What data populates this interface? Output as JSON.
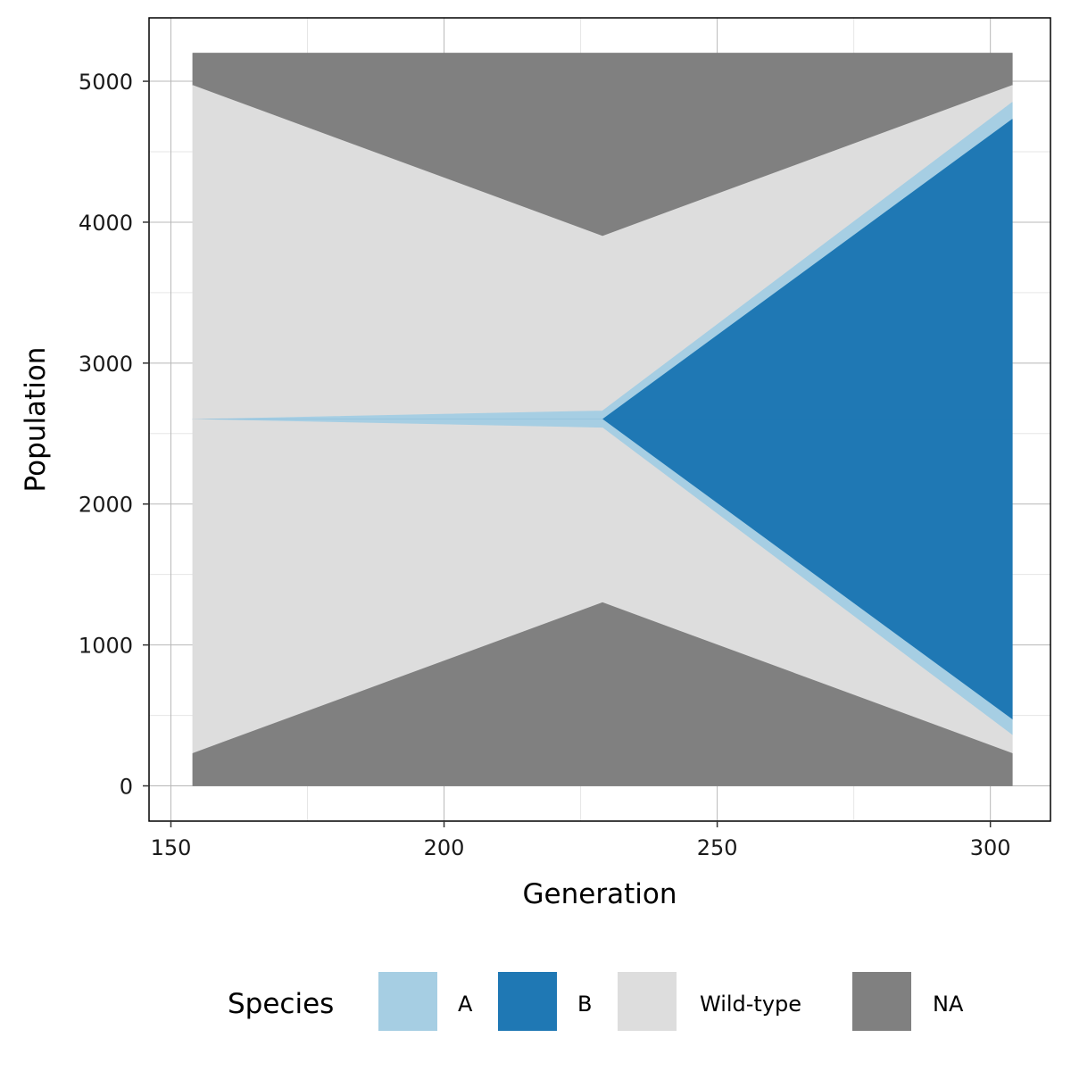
{
  "chart_data": {
    "type": "area",
    "xlabel": "Generation",
    "ylabel": "Population",
    "x_ticks": [
      150,
      200,
      250,
      300
    ],
    "y_ticks": [
      0,
      1000,
      2000,
      3000,
      4000,
      5000
    ],
    "xlim": [
      146,
      311
    ],
    "ylim": [
      -250,
      5450
    ],
    "grid": true,
    "legend": {
      "title": "Species",
      "position": "bottom",
      "entries": [
        {
          "label": "A",
          "color": "#A6CEE3"
        },
        {
          "label": "B",
          "color": "#1F78B4"
        },
        {
          "label": "Wild-type",
          "color": "#DDDDDD"
        },
        {
          "label": "NA",
          "color": "#808080"
        }
      ]
    },
    "x": [
      154,
      229,
      304
    ],
    "series": [
      {
        "name": "NA",
        "color": "#808080",
        "lower": [
          4970,
          3900,
          4970
        ],
        "upper": [
          5200,
          5200,
          5200
        ]
      },
      {
        "name": "Wild-type",
        "color": "#DDDDDD",
        "lower": [
          2600,
          2660,
          4850
        ],
        "upper": [
          4970,
          3900,
          4970
        ]
      },
      {
        "name": "A",
        "color": "#A6CEE3",
        "lower": [
          2600,
          2600,
          4730
        ],
        "upper": [
          2600,
          2660,
          4850
        ]
      },
      {
        "name": "B",
        "color": "#1F78B4",
        "lower": [
          2600,
          2600,
          2600
        ],
        "upper": [
          2600,
          2600,
          4730
        ]
      },
      {
        "name": "B",
        "color": "#1F78B4",
        "lower": [
          2600,
          2600,
          470
        ],
        "upper": [
          2600,
          2600,
          2600
        ]
      },
      {
        "name": "A",
        "color": "#A6CEE3",
        "lower": [
          2600,
          2540,
          360
        ],
        "upper": [
          2600,
          2600,
          470
        ]
      },
      {
        "name": "Wild-type",
        "color": "#DDDDDD",
        "lower": [
          230,
          1300,
          230
        ],
        "upper": [
          2600,
          2540,
          360
        ]
      },
      {
        "name": "NA",
        "color": "#808080",
        "lower": [
          0,
          0,
          0
        ],
        "upper": [
          230,
          1300,
          230
        ]
      }
    ]
  }
}
